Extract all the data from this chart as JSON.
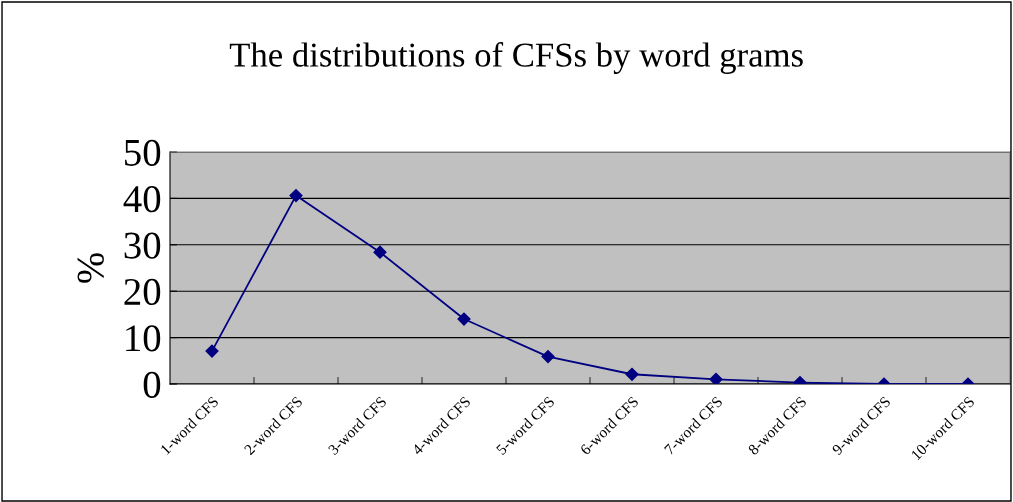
{
  "chart_data": {
    "type": "line",
    "title": "The distributions of CFSs by word grams",
    "ylabel": "%",
    "categories": [
      "1-word CFS",
      "2-word CFS",
      "3-word CFS",
      "4-word CFS",
      "5-word CFS",
      "6-word CFS",
      "7-word CFS",
      "8-word CFS",
      "9-word CFS",
      "10-word CFS"
    ],
    "series": [
      {
        "color": "#000080",
        "values": [
          7.1,
          40.6,
          28.4,
          14.0,
          5.9,
          2.1,
          1.0,
          0.3,
          0.0,
          0.0
        ]
      }
    ],
    "ylim": [
      0,
      50
    ],
    "yticks": [
      0,
      10,
      20,
      30,
      40,
      50
    ],
    "grid": "y",
    "marker": "diamond",
    "line_style": "solid",
    "legend": false
  }
}
